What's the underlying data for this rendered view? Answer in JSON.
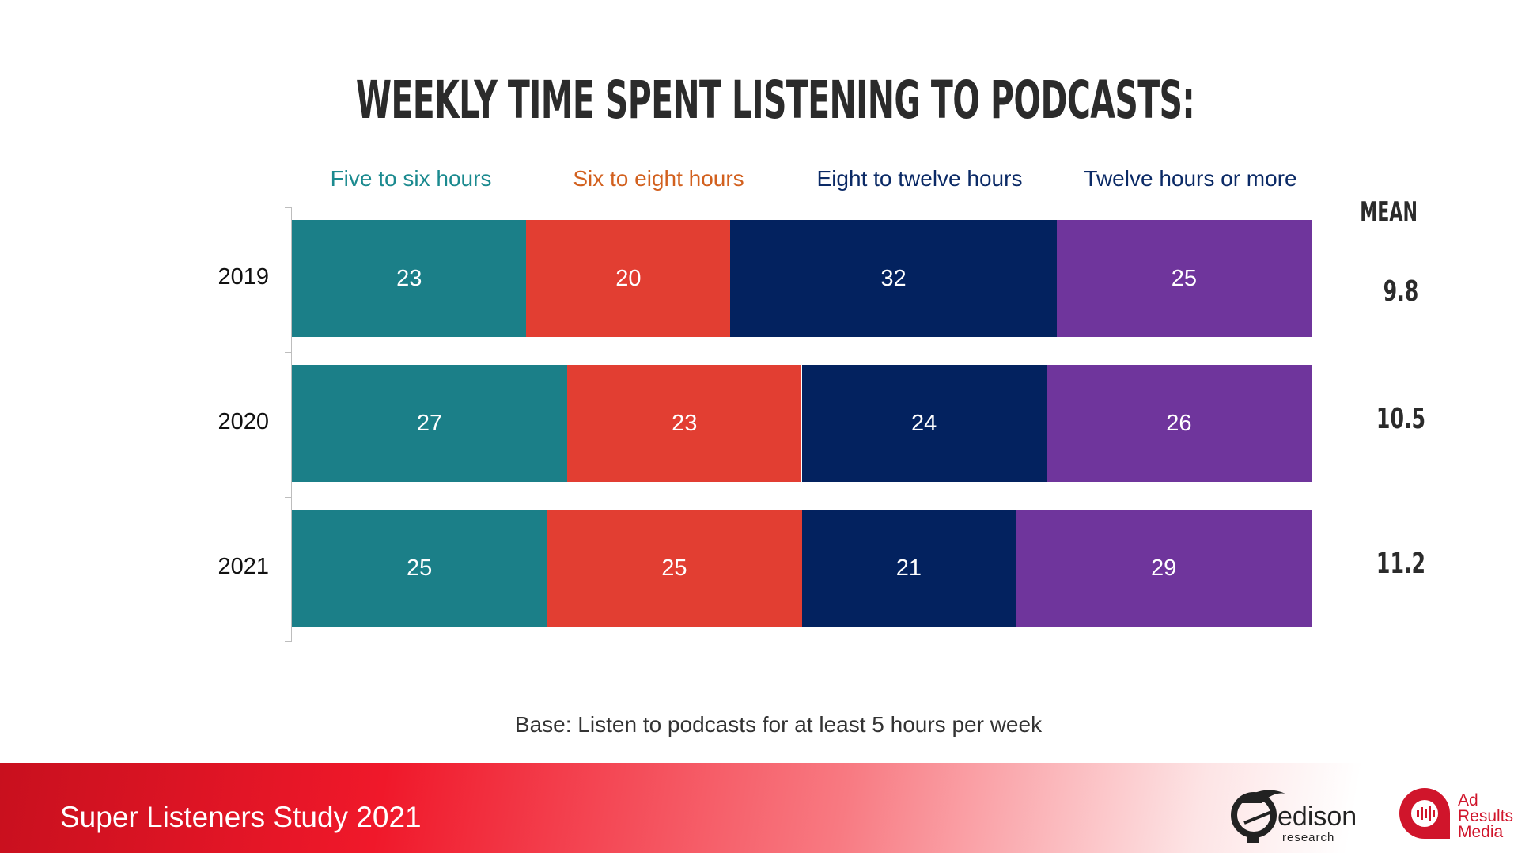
{
  "chart_data": {
    "type": "bar",
    "orientation": "horizontal",
    "stacked": true,
    "title": "WEEKLY TIME SPENT LISTENING TO PODCASTS:",
    "categories": [
      "2019",
      "2020",
      "2021"
    ],
    "series": [
      {
        "name": "Five to six hours",
        "values": [
          23,
          27,
          25
        ],
        "color": "#1b7f88",
        "label_color": "#1b8a8f"
      },
      {
        "name": "Six to eight hours",
        "values": [
          20,
          23,
          25
        ],
        "color": "#e23e32",
        "label_color": "#d2601e"
      },
      {
        "name": "Eight to twelve hours",
        "values": [
          32,
          24,
          21
        ],
        "color": "#03225f",
        "label_color": "#0b2a66"
      },
      {
        "name": "Twelve hours or more",
        "values": [
          25,
          26,
          29
        ],
        "color": "#6f359c",
        "label_color": "#0b2a66"
      }
    ],
    "mean_label": "MEAN",
    "means": [
      "9.8",
      "10.5",
      "11.2"
    ],
    "xlim": [
      0,
      100
    ],
    "grid": false,
    "legend_placement": "top"
  },
  "base_note": "Base: Listen to podcasts for at least 5 hours per week",
  "footer": {
    "study": "Super Listeners Study 2021",
    "logos": [
      "edison research",
      "Ad Results Media"
    ]
  }
}
